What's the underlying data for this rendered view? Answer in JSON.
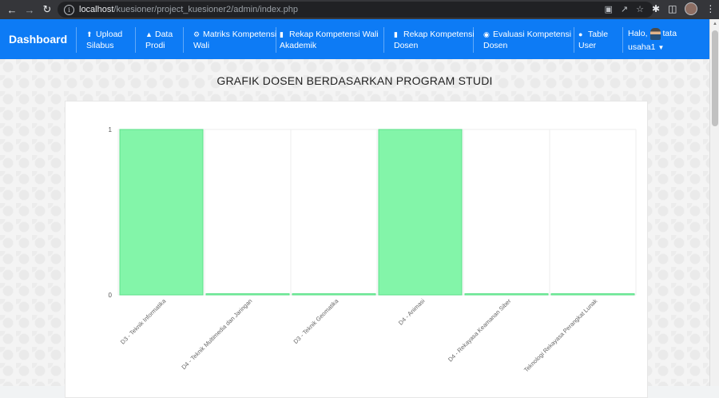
{
  "browser": {
    "url_host": "localhost",
    "url_path": "/kuesioner/project_kuesioner2/admin/index.php"
  },
  "navbar": {
    "brand": "Dashboard",
    "items": [
      {
        "label_line1": "Upload",
        "label_line2": "Silabus",
        "icon": "upload-icon"
      },
      {
        "label_line1": "Data",
        "label_line2": "Prodi",
        "icon": "graduation-cap-icon"
      },
      {
        "label_line1": "Matriks Kompetensi",
        "label_line2": "Wali",
        "icon": "gear-icon"
      },
      {
        "label_line1": "Rekap Kompetensi Wali",
        "label_line2": "Akademik",
        "icon": "document-icon"
      },
      {
        "label_line1": "Rekap Kompetensi",
        "label_line2": "Dosen",
        "icon": "document-icon"
      },
      {
        "label_line1": "Evaluasi Kompetensi",
        "label_line2": "Dosen",
        "icon": "user-circle-icon"
      },
      {
        "label_line1": "Table",
        "label_line2": "User",
        "icon": "users-icon"
      }
    ],
    "user": {
      "greeting": "Halo,",
      "name": "tata",
      "username": "usaha1"
    }
  },
  "page": {
    "title": "GRAFIK DOSEN BERDASARKAN PROGRAM STUDI"
  },
  "chart_data": {
    "type": "bar",
    "categories": [
      "D3 - Teknik Informatika",
      "D4 - Teknik Multimedia dan Jaringan",
      "D3 - Teknik Geomatika",
      "D4 - Animasi",
      "D4 - Rekayasa Keamanan Siber",
      "Teknologi Rekayasa Perangkat Lunak"
    ],
    "values": [
      1,
      0,
      0,
      1,
      0,
      0
    ],
    "ylim": [
      0,
      1
    ],
    "yticks": [
      "0",
      "1"
    ],
    "grid": true,
    "bar_color": "#83f5a9",
    "bar_border": "#5ee08a"
  }
}
